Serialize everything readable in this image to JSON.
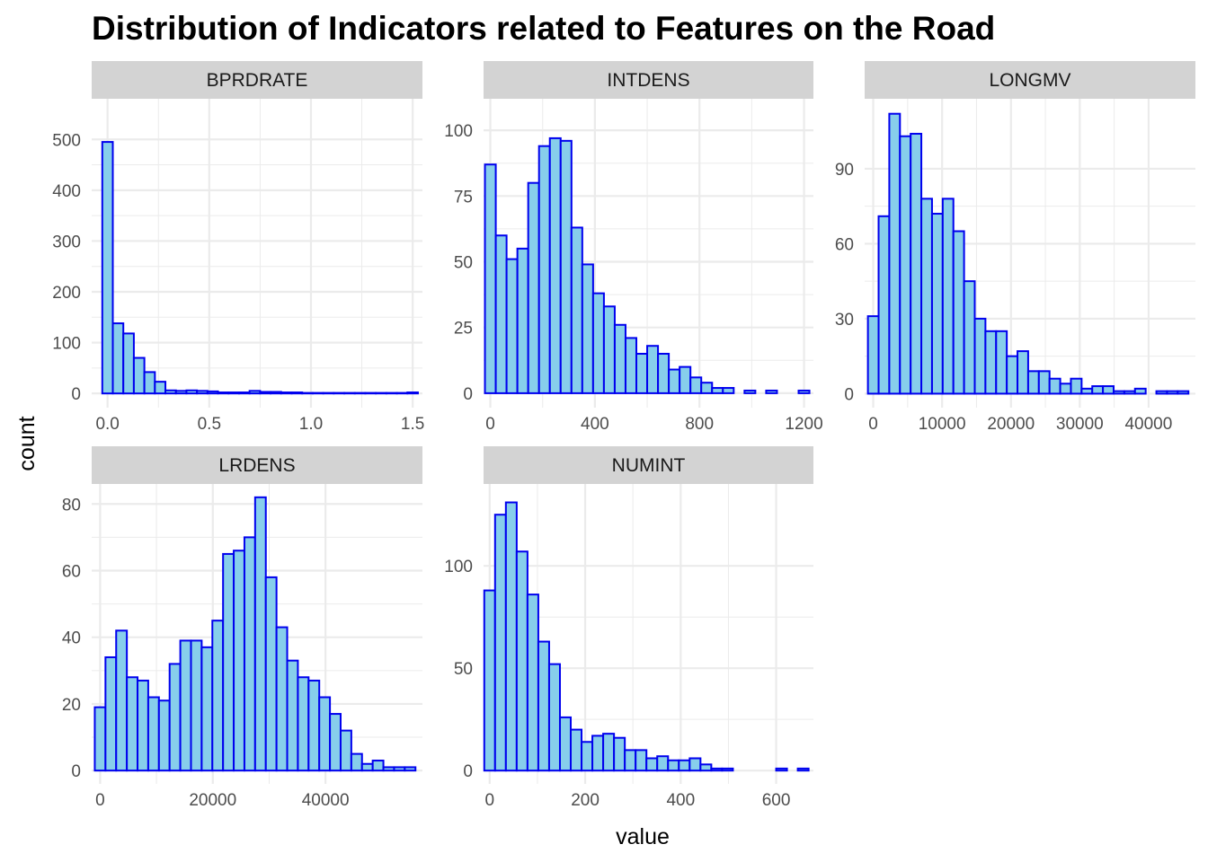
{
  "colors": {
    "bar_fill": "#87CEEB",
    "bar_stroke": "#0000EE",
    "strip_fill": "#D3D3D3",
    "grid": "#EBEBEB",
    "tick_text": "#4D4D4D"
  },
  "chart_data": {
    "type": "bar",
    "title": "Distribution of Indicators related to Features on the Road",
    "xlabel": "value",
    "ylabel": "count",
    "grid": true,
    "facets": [
      {
        "name": "BPRDRATE",
        "bin_width": 0.05172,
        "bins_center": [
          0,
          0.05172,
          0.10344,
          0.15516,
          0.20688,
          0.2586,
          0.31032,
          0.36204,
          0.41376,
          0.46548,
          0.5172,
          0.56892,
          0.62064,
          0.67236,
          0.72408,
          0.7758,
          0.82752,
          0.87924,
          0.93096,
          0.98268,
          1.0344,
          1.08612,
          1.13784,
          1.18956,
          1.24128,
          1.293,
          1.34472,
          1.39644,
          1.44816,
          1.49988
        ],
        "counts": [
          495,
          138,
          118,
          70,
          42,
          23,
          6,
          5,
          6,
          5,
          4,
          2,
          2,
          2,
          5,
          3,
          3,
          2,
          2,
          1,
          1,
          1,
          1,
          1,
          1,
          1,
          1,
          1,
          1,
          2
        ],
        "xlim": [
          -0.078,
          1.548
        ],
        "ylim": [
          -28,
          580
        ],
        "x_ticks": [
          0.0,
          0.5,
          1.0,
          1.5
        ],
        "x_tick_labels": [
          "0.0",
          "0.5",
          "1.0",
          "1.5"
        ],
        "y_ticks": [
          0,
          100,
          200,
          300,
          400,
          500
        ],
        "y_tick_labels": [
          "0",
          "100",
          "200",
          "300",
          "400",
          "500"
        ]
      },
      {
        "name": "INTDENS",
        "bin_width": 41.379,
        "bins_center": [
          0,
          41.379,
          82.758,
          124.137,
          165.516,
          206.895,
          248.274,
          289.653,
          331.032,
          372.411,
          413.79,
          455.169,
          496.548,
          537.927,
          579.306,
          620.685,
          662.064,
          703.443,
          744.822,
          786.201,
          827.58,
          868.959,
          910.338,
          951.717,
          993.096,
          1034.475,
          1075.854,
          1117.233,
          1158.612,
          1200
        ],
        "counts": [
          87,
          60,
          51,
          55,
          80,
          94,
          97,
          96,
          63,
          49,
          38,
          33,
          26,
          21,
          15,
          18,
          15,
          9,
          10,
          6,
          4,
          2,
          2,
          0,
          1,
          0,
          1,
          0,
          0,
          1
        ],
        "xlim": [
          -26,
          1236
        ],
        "ylim": [
          -5.5,
          112
        ],
        "x_ticks": [
          0,
          400,
          800,
          1200
        ],
        "x_tick_labels": [
          "0",
          "400",
          "800",
          "1200"
        ],
        "y_ticks": [
          0,
          25,
          50,
          75,
          100
        ],
        "y_tick_labels": [
          "0",
          "25",
          "50",
          "75",
          "100"
        ]
      },
      {
        "name": "LONGMV",
        "bin_width": 1552,
        "bins_center": [
          0,
          1552,
          3104,
          4656,
          6208,
          7760,
          9312,
          10864,
          12416,
          13968,
          15520,
          17072,
          18624,
          20176,
          21728,
          23280,
          24832,
          26384,
          27936,
          29488,
          31040,
          32592,
          34144,
          35696,
          37248,
          38800,
          40352,
          41904,
          43456,
          45008
        ],
        "counts": [
          31,
          71,
          112,
          103,
          104,
          78,
          72,
          78,
          65,
          45,
          30,
          25,
          25,
          15,
          17,
          9,
          9,
          6,
          4,
          6,
          2,
          3,
          3,
          1,
          1,
          2,
          0,
          1,
          1,
          1
        ],
        "xlim": [
          -1250,
          46800
        ],
        "ylim": [
          -5.6,
          118
        ],
        "x_ticks": [
          0,
          10000,
          20000,
          30000,
          40000
        ],
        "x_tick_labels": [
          "0",
          "10000",
          "20000",
          "30000",
          "40000"
        ],
        "y_ticks": [
          0,
          30,
          60,
          90
        ],
        "y_tick_labels": [
          "0",
          "30",
          "60",
          "90"
        ]
      },
      {
        "name": "LRDENS",
        "bin_width": 1897,
        "bins_center": [
          0,
          1897,
          3794,
          5691,
          7588,
          9485,
          11382,
          13279,
          15176,
          17073,
          18970,
          20867,
          22764,
          24661,
          26558,
          28455,
          30352,
          32249,
          34146,
          36043,
          37940,
          39837,
          41734,
          43631,
          45528,
          47425,
          49322,
          51219,
          53116,
          55013
        ],
        "counts": [
          19,
          34,
          42,
          28,
          27,
          22,
          21,
          32,
          39,
          39,
          37,
          45,
          65,
          66,
          70,
          82,
          58,
          43,
          33,
          28,
          27,
          22,
          17,
          12,
          5,
          2,
          3,
          1,
          1,
          1
        ],
        "xlim": [
          -1500,
          57200
        ],
        "ylim": [
          -4,
          86
        ],
        "x_ticks": [
          0,
          20000,
          40000
        ],
        "x_tick_labels": [
          "0",
          "20000",
          "40000"
        ],
        "y_ticks": [
          0,
          20,
          40,
          60,
          80
        ],
        "y_tick_labels": [
          "0",
          "20",
          "40",
          "60",
          "80"
        ]
      },
      {
        "name": "NUMINT",
        "bin_width": 22.64,
        "bins_center": [
          0,
          22.64,
          45.28,
          67.92,
          90.56,
          113.2,
          135.84,
          158.48,
          181.12,
          203.76,
          226.4,
          249.04,
          271.68,
          294.32,
          316.96,
          339.6,
          362.24,
          384.88,
          407.52,
          430.16,
          452.8,
          475.44,
          498.08,
          520.72,
          543.36,
          566,
          588.64,
          611.28,
          633.92,
          656.56
        ],
        "counts": [
          88,
          125,
          131,
          107,
          86,
          63,
          52,
          26,
          20,
          14,
          17,
          18,
          16,
          10,
          10,
          6,
          7,
          5,
          5,
          6,
          3,
          1,
          1,
          0,
          0,
          0,
          0,
          1,
          0,
          1
        ],
        "xlim": [
          -12.8,
          678
        ],
        "ylim": [
          -6.5,
          140
        ],
        "x_ticks": [
          0,
          200,
          400,
          600
        ],
        "x_tick_labels": [
          "0",
          "200",
          "400",
          "600"
        ],
        "y_ticks": [
          0,
          50,
          100
        ],
        "y_tick_labels": [
          "0",
          "50",
          "100"
        ]
      }
    ]
  }
}
